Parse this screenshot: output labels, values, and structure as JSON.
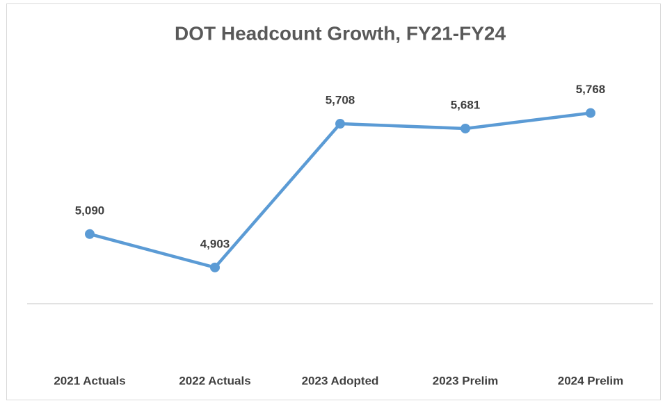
{
  "chart_data": {
    "type": "line",
    "title": "DOT Headcount Growth, FY21-FY24",
    "categories": [
      "2021 Actuals",
      "2022 Actuals",
      "2023 Adopted",
      "2023 Prelim",
      "2024 Prelim"
    ],
    "values": [
      5090,
      4903,
      5708,
      5681,
      5768
    ],
    "value_labels": [
      "5,090",
      "4,903",
      "5,708",
      "5,681",
      "5,768"
    ],
    "color": "#5b9bd5",
    "ylim": [
      4700,
      6000
    ]
  }
}
